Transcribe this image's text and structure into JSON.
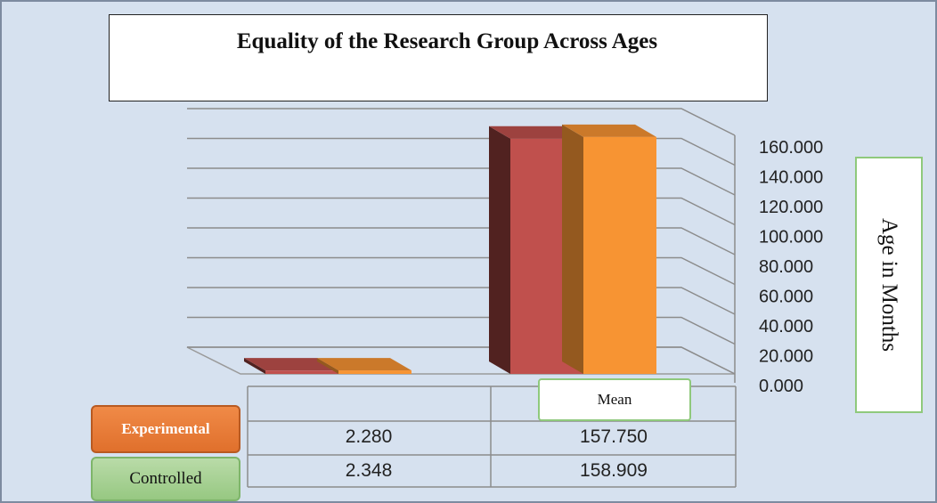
{
  "chart_data": {
    "type": "bar",
    "title": "Equality of the Research Group Across Ages",
    "ylabel": "Age in Months",
    "categories": [
      "",
      "Mean"
    ],
    "series": [
      {
        "name": "Experimental",
        "values": [
          2.28,
          157.75
        ],
        "value_labels": [
          "2.280",
          "157.750"
        ],
        "color": "#c0504d"
      },
      {
        "name": "Controlled",
        "values": [
          2.348,
          158.909
        ],
        "value_labels": [
          "2.348",
          "158.909"
        ],
        "color": "#f79433"
      }
    ],
    "ylim": [
      0,
      160
    ],
    "yticks": [
      0,
      20,
      40,
      60,
      80,
      100,
      120,
      140,
      160
    ],
    "ytick_labels": [
      "0.000",
      "20.000",
      "40.000",
      "60.000",
      "80.000",
      "100.000",
      "120.000",
      "140.000",
      "160.000"
    ],
    "grid": true,
    "style": "3d-column with data table",
    "colors": {
      "background": "#d6e1ef",
      "experimental_legend": "#e97a35",
      "controlled_legend": "#a8d294"
    }
  }
}
